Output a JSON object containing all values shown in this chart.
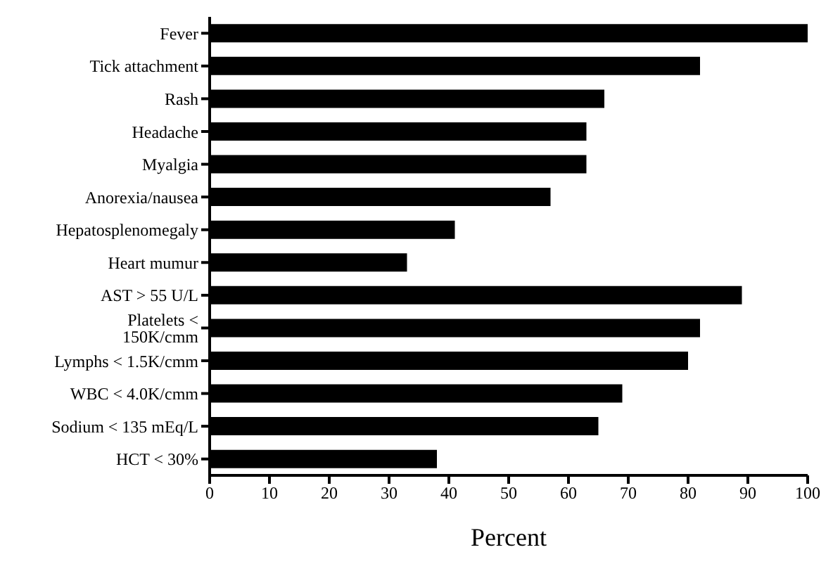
{
  "chart_data": {
    "type": "bar",
    "orientation": "horizontal",
    "xlabel": "Percent",
    "categories": [
      "Fever",
      "Tick attachment",
      "Rash",
      "Headache",
      "Myalgia",
      "Anorexia/nausea",
      "Hepatosplenomegaly",
      "Heart mumur",
      "AST > 55 U/L",
      "Platelets < 150K/cmm",
      "Lymphs < 1.5K/cmm",
      "WBC < 4.0K/cmm",
      "Sodium < 135 mEq/L",
      "HCT < 30%"
    ],
    "values": [
      100,
      82,
      66,
      63,
      63,
      57,
      41,
      33,
      89,
      82,
      80,
      69,
      65,
      38
    ],
    "color": "#000000",
    "xlim": [
      0,
      100
    ],
    "xticks": [
      0,
      10,
      20,
      30,
      40,
      50,
      60,
      70,
      80,
      90,
      100
    ],
    "grid": false,
    "legend": false
  }
}
